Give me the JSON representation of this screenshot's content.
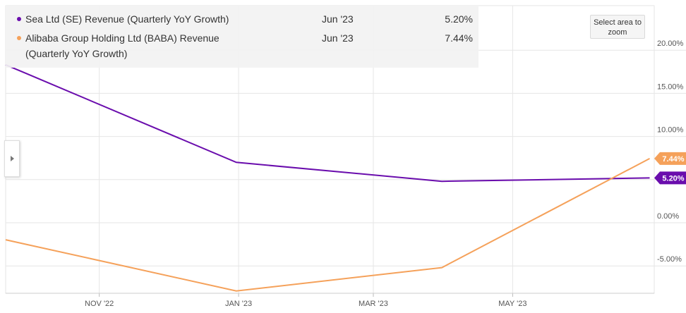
{
  "legend": {
    "items": [
      {
        "name": "Sea Ltd (SE) Revenue (Quarterly YoY Growth)",
        "date": "Jun '23",
        "value": "5.20%",
        "color": "#6a0dad"
      },
      {
        "name": "Alibaba Group Holding Ltd (BABA) Revenue (Quarterly YoY Growth)",
        "date": "Jun '23",
        "value": "7.44%",
        "color": "#f5a15a"
      }
    ]
  },
  "zoom_button": {
    "label": "Select area to zoom"
  },
  "side_tab": {
    "icon": "chevron-right-icon"
  },
  "chart_data": {
    "type": "line",
    "y_tick_labels": [
      "20.00%",
      "15.00%",
      "10.00%",
      "0.00%",
      "-5.00%"
    ],
    "x_tick_labels": [
      "NOV '22",
      "JAN '23",
      "MAR '23",
      "MAY '23"
    ],
    "ylim": [
      -8.5,
      25
    ],
    "xlim": [
      "2022-09-21",
      "2023-07-02"
    ],
    "x_ticks": [
      "2022-11-01",
      "2023-01-01",
      "2023-03-01",
      "2023-05-01"
    ],
    "y_ticks": [
      -5,
      0,
      5,
      10,
      15,
      20
    ],
    "grid": true,
    "series": [
      {
        "name": "Sea Ltd (SE) Revenue (Quarterly YoY Growth)",
        "color": "#6a0dad",
        "end_label": "5.20%",
        "points": [
          {
            "x": "2022-09-30",
            "y": 17.3
          },
          {
            "x": "2022-12-31",
            "y": 7.0
          },
          {
            "x": "2023-03-31",
            "y": 4.8
          },
          {
            "x": "2023-06-30",
            "y": 5.2
          }
        ]
      },
      {
        "name": "Alibaba Group Holding Ltd (BABA) Revenue (Quarterly YoY Growth)",
        "color": "#f5a15a",
        "end_label": "7.44%",
        "points": [
          {
            "x": "2022-09-30",
            "y": -2.5
          },
          {
            "x": "2022-12-31",
            "y": -7.9
          },
          {
            "x": "2023-03-31",
            "y": -5.2
          },
          {
            "x": "2023-06-30",
            "y": 7.44
          }
        ]
      }
    ]
  }
}
